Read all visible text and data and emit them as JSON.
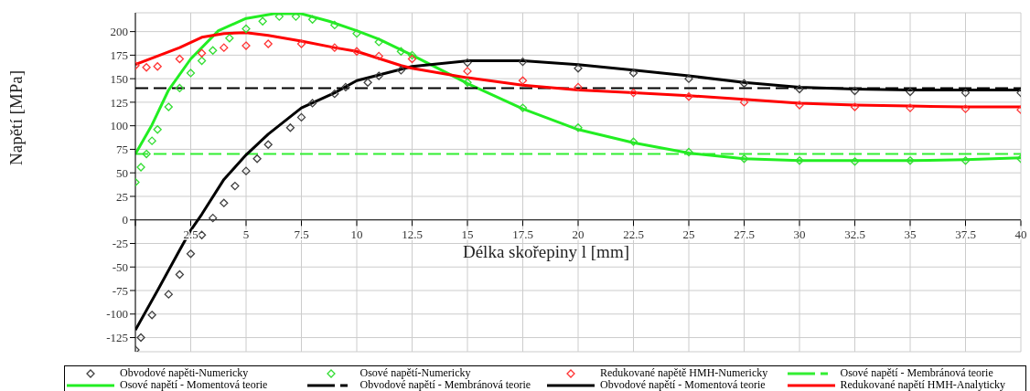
{
  "chart_data": {
    "type": "line",
    "xlabel": "Délka skořepiny l [mm]",
    "ylabel": "Napětí [MPa]",
    "xlim": [
      0,
      40
    ],
    "xticks": [
      {
        "value": 0,
        "label": null
      },
      2.5,
      5,
      7.5,
      10,
      12.5,
      15,
      17.5,
      20,
      22.5,
      25,
      27.5,
      30,
      32.5,
      35,
      37.5,
      40
    ],
    "ylim": [
      -140,
      220
    ],
    "yticks": [
      -125,
      -100,
      -75,
      -50,
      -25,
      0,
      25,
      50,
      75,
      100,
      125,
      150,
      175,
      200
    ],
    "grid": true,
    "legend": "bottom",
    "series": [
      {
        "name": "Obvodové napěti-Numericky",
        "type": "scatter",
        "marker": "diamond",
        "color": "#404040",
        "x": [
          0,
          0.25,
          0.75,
          1.5,
          2,
          2.5,
          3,
          3.5,
          4,
          4.5,
          5,
          5.5,
          6,
          7,
          7.5,
          8,
          9,
          9.5,
          10.5,
          11,
          12,
          15,
          17.5,
          20,
          22.5,
          25,
          27.5,
          30,
          32.5,
          35,
          37.5,
          40
        ],
        "values": [
          -138,
          -125,
          -101,
          -79,
          -58,
          -36,
          -16,
          2,
          18,
          36,
          52,
          65,
          80,
          98,
          109,
          124,
          134,
          141,
          146,
          153,
          159,
          167,
          168,
          161,
          156,
          150,
          145,
          139,
          137,
          136,
          135,
          135
        ]
      },
      {
        "name": "Osové napětí-Numericky",
        "type": "scatter",
        "marker": "diamond",
        "color": "#33dd33",
        "x": [
          0,
          0.25,
          0.5,
          0.75,
          1,
          1.5,
          2,
          2.5,
          3,
          3.5,
          4.25,
          5,
          5.75,
          6.5,
          7.25,
          8,
          9,
          10,
          11,
          12,
          12.5,
          15,
          17.5,
          20,
          22.5,
          25,
          27.5,
          30,
          32.5,
          35,
          37.5,
          40
        ],
        "values": [
          40,
          56,
          70,
          84,
          96,
          120,
          140,
          156,
          169,
          180,
          193,
          203,
          211,
          216,
          216,
          213,
          207,
          198,
          189,
          179,
          175,
          146,
          119,
          98,
          83,
          72,
          65,
          63,
          62,
          63,
          63,
          65
        ]
      },
      {
        "name": "Redukované napětě HMH-Numericky",
        "type": "scatter",
        "marker": "diamond",
        "color": "#ff3333",
        "x": [
          0,
          0.5,
          1,
          2,
          3,
          4,
          5,
          6,
          7.5,
          9,
          10,
          11,
          12.5,
          15,
          17.5,
          20,
          22.5,
          25,
          27.5,
          30,
          32.5,
          35,
          37.5,
          40
        ],
        "values": [
          164,
          162,
          163,
          171,
          177,
          183,
          185,
          187,
          187,
          183,
          179,
          174,
          171,
          158,
          148,
          141,
          135,
          131,
          125,
          122,
          120,
          119,
          118,
          117
        ]
      },
      {
        "name": "Osové napětí - Membránová teorie",
        "line_style": "dashed",
        "color": "#33ee33",
        "x": [
          0,
          40
        ],
        "values": [
          70,
          70
        ]
      },
      {
        "name": "Osové napětí - Momentová teorie",
        "line_style": "solid",
        "color": "#22ee22",
        "x": [
          0,
          0.75,
          1.5,
          2.5,
          3.75,
          5,
          6.25,
          7.5,
          8.75,
          10,
          11,
          12.5,
          15,
          17.5,
          20,
          22.5,
          25,
          27.5,
          30,
          32.5,
          35,
          37.5,
          40
        ],
        "values": [
          70,
          101,
          138,
          171,
          201,
          214,
          219,
          219,
          211,
          201,
          192,
          175,
          145,
          118,
          96,
          82,
          71,
          65,
          63,
          63,
          63,
          64,
          66
        ]
      },
      {
        "name": "Obvodové napětí - Membránová teorie",
        "line_style": "dashed",
        "color": "#000000",
        "x": [
          0,
          40
        ],
        "values": [
          140,
          140
        ]
      },
      {
        "name": "Obvodové napětí - Momentová teorie",
        "line_style": "solid",
        "color": "#000000",
        "x": [
          0,
          1,
          2,
          2.5,
          3,
          4,
          5,
          6,
          7.5,
          9,
          10,
          12.5,
          15,
          17.5,
          20,
          22.5,
          25,
          27.5,
          30,
          32.5,
          35,
          37.5,
          40
        ],
        "values": [
          -117,
          -75,
          -32,
          -11,
          6,
          43,
          69,
          91,
          119,
          135,
          148,
          163,
          169,
          169,
          165,
          159,
          153,
          146,
          141,
          139,
          138,
          138,
          138
        ]
      },
      {
        "name": "Redukované napětí HMH-Analyticky",
        "line_style": "solid",
        "color": "#ff0000",
        "x": [
          0,
          1,
          2,
          3,
          4,
          5,
          6,
          7.5,
          9,
          10,
          12,
          12.5,
          15,
          17.5,
          20,
          22.5,
          25,
          27.5,
          30,
          32.5,
          35,
          37.5,
          40
        ],
        "values": [
          165,
          174,
          183,
          194,
          198,
          199,
          196,
          190,
          183,
          179,
          164,
          161,
          151,
          143,
          138,
          135,
          132,
          128,
          124,
          122,
          121,
          120,
          120
        ]
      }
    ]
  }
}
